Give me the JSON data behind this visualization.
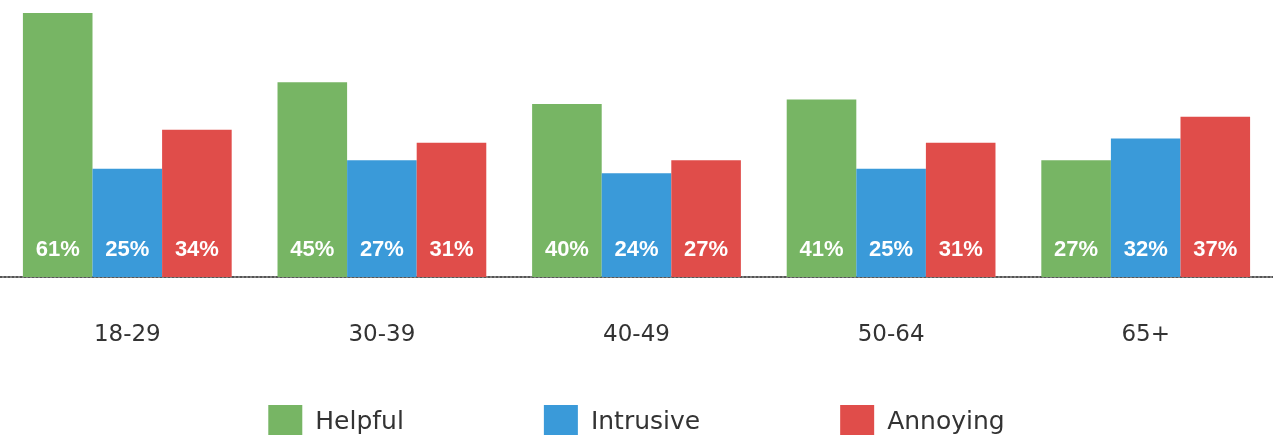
{
  "chart_data": {
    "type": "bar",
    "categories": [
      "18-29",
      "30-39",
      "40-49",
      "50-64",
      "65+"
    ],
    "series": [
      {
        "name": "Helpful",
        "color": "#77b564",
        "values": [
          61,
          45,
          40,
          41,
          27
        ],
        "value_labels": [
          "61%",
          "45%",
          "40%",
          "41%",
          "27%"
        ]
      },
      {
        "name": "Intrusive",
        "color": "#3a9ad9",
        "values": [
          25,
          27,
          24,
          25,
          32
        ],
        "value_labels": [
          "25%",
          "27%",
          "24%",
          "25%",
          "32%"
        ]
      },
      {
        "name": "Annoying",
        "color": "#e04d4a",
        "values": [
          34,
          31,
          27,
          31,
          37
        ],
        "value_labels": [
          "34%",
          "31%",
          "27%",
          "31%",
          "37%"
        ]
      }
    ],
    "legend": "bottom"
  }
}
